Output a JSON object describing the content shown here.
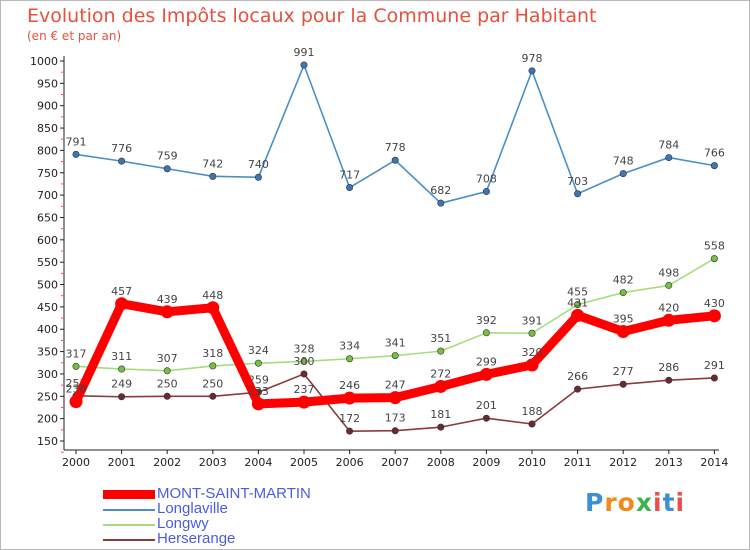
{
  "header": {
    "title": "Evolution des Impôts locaux pour la Commune par Habitant",
    "subtitle": "(en € et par an)"
  },
  "logo": {
    "text": "Proxiti",
    "letters": [
      {
        "ch": "P",
        "color": "#3b8fd9"
      },
      {
        "ch": "r",
        "color": "#f08a1d"
      },
      {
        "ch": "o",
        "color": "#f08a1d"
      },
      {
        "ch": "x",
        "color": "#3bb54a"
      },
      {
        "ch": "i",
        "color": "#e94f4f"
      },
      {
        "ch": "t",
        "color": "#3b8fd9"
      },
      {
        "ch": "i",
        "color": "#e94f4f"
      }
    ]
  },
  "chart_data": {
    "type": "line",
    "x": [
      2000,
      2001,
      2002,
      2003,
      2004,
      2005,
      2006,
      2007,
      2008,
      2009,
      2010,
      2011,
      2012,
      2013,
      2014
    ],
    "ylim": [
      150,
      1000
    ],
    "yticks": [
      150,
      200,
      250,
      300,
      350,
      400,
      450,
      500,
      550,
      600,
      650,
      700,
      750,
      800,
      850,
      900,
      950,
      1000
    ],
    "grid": false,
    "legend_placement": "bottom-left",
    "series": [
      {
        "name": "Longlaville",
        "color": "#4a90c8",
        "marker": "#3a78b5",
        "values": [
          791,
          776,
          759,
          742,
          740,
          991,
          717,
          778,
          682,
          708,
          978,
          703,
          748,
          784,
          766
        ]
      },
      {
        "name": "Longwy",
        "color": "#a6dd7c",
        "marker": "#74c043",
        "values": [
          317,
          311,
          307,
          318,
          324,
          328,
          334,
          341,
          351,
          392,
          391,
          455,
          482,
          498,
          558
        ]
      },
      {
        "name": "Herserange",
        "color": "#8b3a3a",
        "marker": "#6e2a2a",
        "values": [
          251,
          249,
          250,
          250,
          259,
          300,
          172,
          173,
          181,
          201,
          188,
          266,
          277,
          286,
          291
        ]
      },
      {
        "name": "MONT-SAINT-MARTIN",
        "color": "#ff0000",
        "marker": "#ff0000",
        "values": [
          238,
          457,
          439,
          448,
          233,
          237,
          246,
          247,
          272,
          299,
          320,
          431,
          395,
          420,
          430
        ]
      }
    ],
    "legend": [
      {
        "name": "MONT-SAINT-MARTIN",
        "color": "#ff0000",
        "text_color": "#4a5de0"
      },
      {
        "name": "Longlaville",
        "color": "#4a90c8",
        "text_color": "#4a5de0"
      },
      {
        "name": "Longwy",
        "color": "#a6dd7c",
        "text_color": "#4a5de0"
      },
      {
        "name": "Herserange",
        "color": "#8b3a3a",
        "text_color": "#4a5de0"
      }
    ]
  }
}
